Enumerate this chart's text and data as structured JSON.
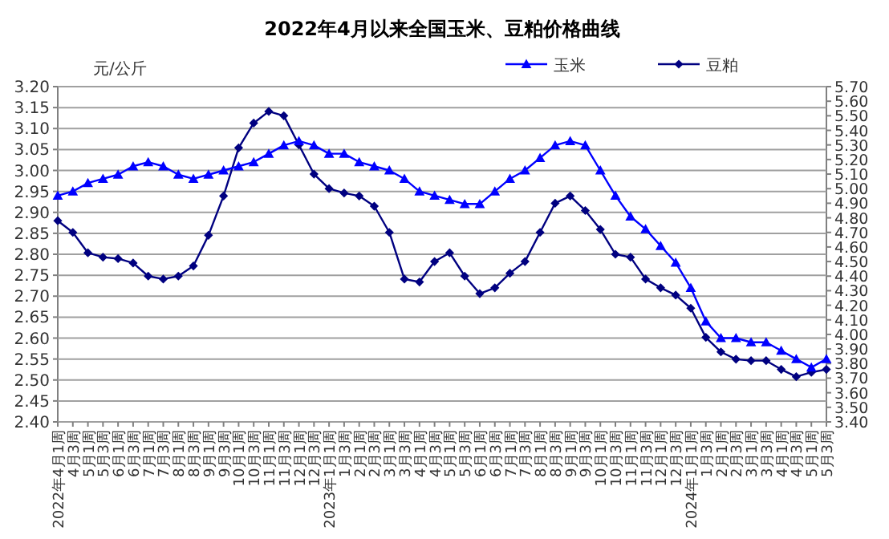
{
  "chart_data": {
    "type": "line",
    "title": "2022年4月以来全国玉米、豆粕价格曲线",
    "ylabel": "元/公斤",
    "categories": [
      "2022年4月1周",
      "4月3周",
      "5月1周",
      "5月3周",
      "6月1周",
      "6月3周",
      "7月1周",
      "7月3周",
      "8月1周",
      "8月3周",
      "9月1周",
      "9月3周",
      "10月1周",
      "10月3周",
      "11月1周",
      "11月3周",
      "12月1周",
      "12月3周",
      "2023年1月1周",
      "1月3周",
      "2月1周",
      "2月3周",
      "3月1周",
      "3月3周",
      "4月1周",
      "4月3周",
      "5月1周",
      "5月3周",
      "6月1周",
      "6月3周",
      "7月1周",
      "7月3周",
      "8月1周",
      "8月3周",
      "9月1周",
      "9月3周",
      "10月1周",
      "10月3周",
      "11月1周",
      "11月3周",
      "12月1周",
      "12月3周",
      "2024年1月1周",
      "1月3周",
      "2月1周",
      "2月3周",
      "3月1周",
      "3月3周",
      "4月1周",
      "4月3周",
      "5月1周",
      "5月3周"
    ],
    "series": [
      {
        "name": "玉米",
        "color": "#0000ff",
        "marker": "triangle",
        "values": [
          2.94,
          2.95,
          2.97,
          2.98,
          2.99,
          3.01,
          3.02,
          3.01,
          2.99,
          2.98,
          2.99,
          3.0,
          3.01,
          3.02,
          3.04,
          3.06,
          3.07,
          3.06,
          3.04,
          3.04,
          3.02,
          3.01,
          3.0,
          2.98,
          2.95,
          2.94,
          2.93,
          2.92,
          2.92,
          2.95,
          2.98,
          3.0,
          3.03,
          3.06,
          3.07,
          3.06,
          3.0,
          2.94,
          2.89,
          2.86,
          2.82,
          2.78,
          2.72,
          2.64,
          2.6,
          2.6,
          2.59,
          2.59,
          2.57,
          2.55,
          2.53,
          2.55
        ]
      },
      {
        "name": "豆粕",
        "color": "#000080",
        "marker": "diamond",
        "axis": "y2",
        "values": [
          4.78,
          4.7,
          4.56,
          4.53,
          4.52,
          4.49,
          4.4,
          4.38,
          4.4,
          4.47,
          4.68,
          4.95,
          5.28,
          5.45,
          5.53,
          5.5,
          5.3,
          5.1,
          5.0,
          4.97,
          4.95,
          4.88,
          4.7,
          4.38,
          4.36,
          4.5,
          4.56,
          4.4,
          4.28,
          4.32,
          4.42,
          4.5,
          4.7,
          4.9,
          4.95,
          4.85,
          4.72,
          4.55,
          4.53,
          4.38,
          4.32,
          4.27,
          4.18,
          3.98,
          3.88,
          3.83,
          3.82,
          3.82,
          3.76,
          3.71,
          3.74,
          3.76
        ]
      }
    ],
    "ylim": [
      2.4,
      3.2
    ],
    "yticks": [
      {
        "value": 2.4,
        "label": "2.40"
      },
      {
        "value": 2.45,
        "label": "2.45"
      },
      {
        "value": 2.5,
        "label": "2.50"
      },
      {
        "value": 2.55,
        "label": "2.55"
      },
      {
        "value": 2.6,
        "label": "2.60"
      },
      {
        "value": 2.65,
        "label": "2.65"
      },
      {
        "value": 2.7,
        "label": "2.70"
      },
      {
        "value": 2.75,
        "label": "2.75"
      },
      {
        "value": 2.8,
        "label": "2.80"
      },
      {
        "value": 2.85,
        "label": "2.85"
      },
      {
        "value": 2.9,
        "label": "2.90"
      },
      {
        "value": 2.95,
        "label": "2.95"
      },
      {
        "value": 3.0,
        "label": "3.00"
      },
      {
        "value": 3.05,
        "label": "3.05"
      },
      {
        "value": 3.1,
        "label": "3.10"
      },
      {
        "value": 3.15,
        "label": "3.15"
      },
      {
        "value": 3.2,
        "label": "3.20"
      }
    ],
    "y2lim": [
      3.4,
      5.7
    ],
    "y2ticks": [
      {
        "value": 3.4,
        "label": "3.40"
      },
      {
        "value": 3.5,
        "label": "3.50"
      },
      {
        "value": 3.6,
        "label": "3.60"
      },
      {
        "value": 3.7,
        "label": "3.70"
      },
      {
        "value": 3.8,
        "label": "3.80"
      },
      {
        "value": 3.9,
        "label": "3.90"
      },
      {
        "value": 4.0,
        "label": "4.00"
      },
      {
        "value": 4.1,
        "label": "4.10"
      },
      {
        "value": 4.2,
        "label": "4.20"
      },
      {
        "value": 4.3,
        "label": "4.30"
      },
      {
        "value": 4.4,
        "label": "4.40"
      },
      {
        "value": 4.5,
        "label": "4.50"
      },
      {
        "value": 4.6,
        "label": "4.60"
      },
      {
        "value": 4.7,
        "label": "4.70"
      },
      {
        "value": 4.8,
        "label": "4.80"
      },
      {
        "value": 4.9,
        "label": "4.90"
      },
      {
        "value": 5.0,
        "label": "5.00"
      },
      {
        "value": 5.1,
        "label": "5.10"
      },
      {
        "value": 5.2,
        "label": "5.20"
      },
      {
        "value": 5.3,
        "label": "5.30"
      },
      {
        "value": 5.4,
        "label": "5.40"
      },
      {
        "value": 5.5,
        "label": "5.50"
      },
      {
        "value": 5.6,
        "label": "5.60"
      },
      {
        "value": 5.7,
        "label": "5.70"
      }
    ],
    "grid": "y",
    "legend": "top right"
  }
}
